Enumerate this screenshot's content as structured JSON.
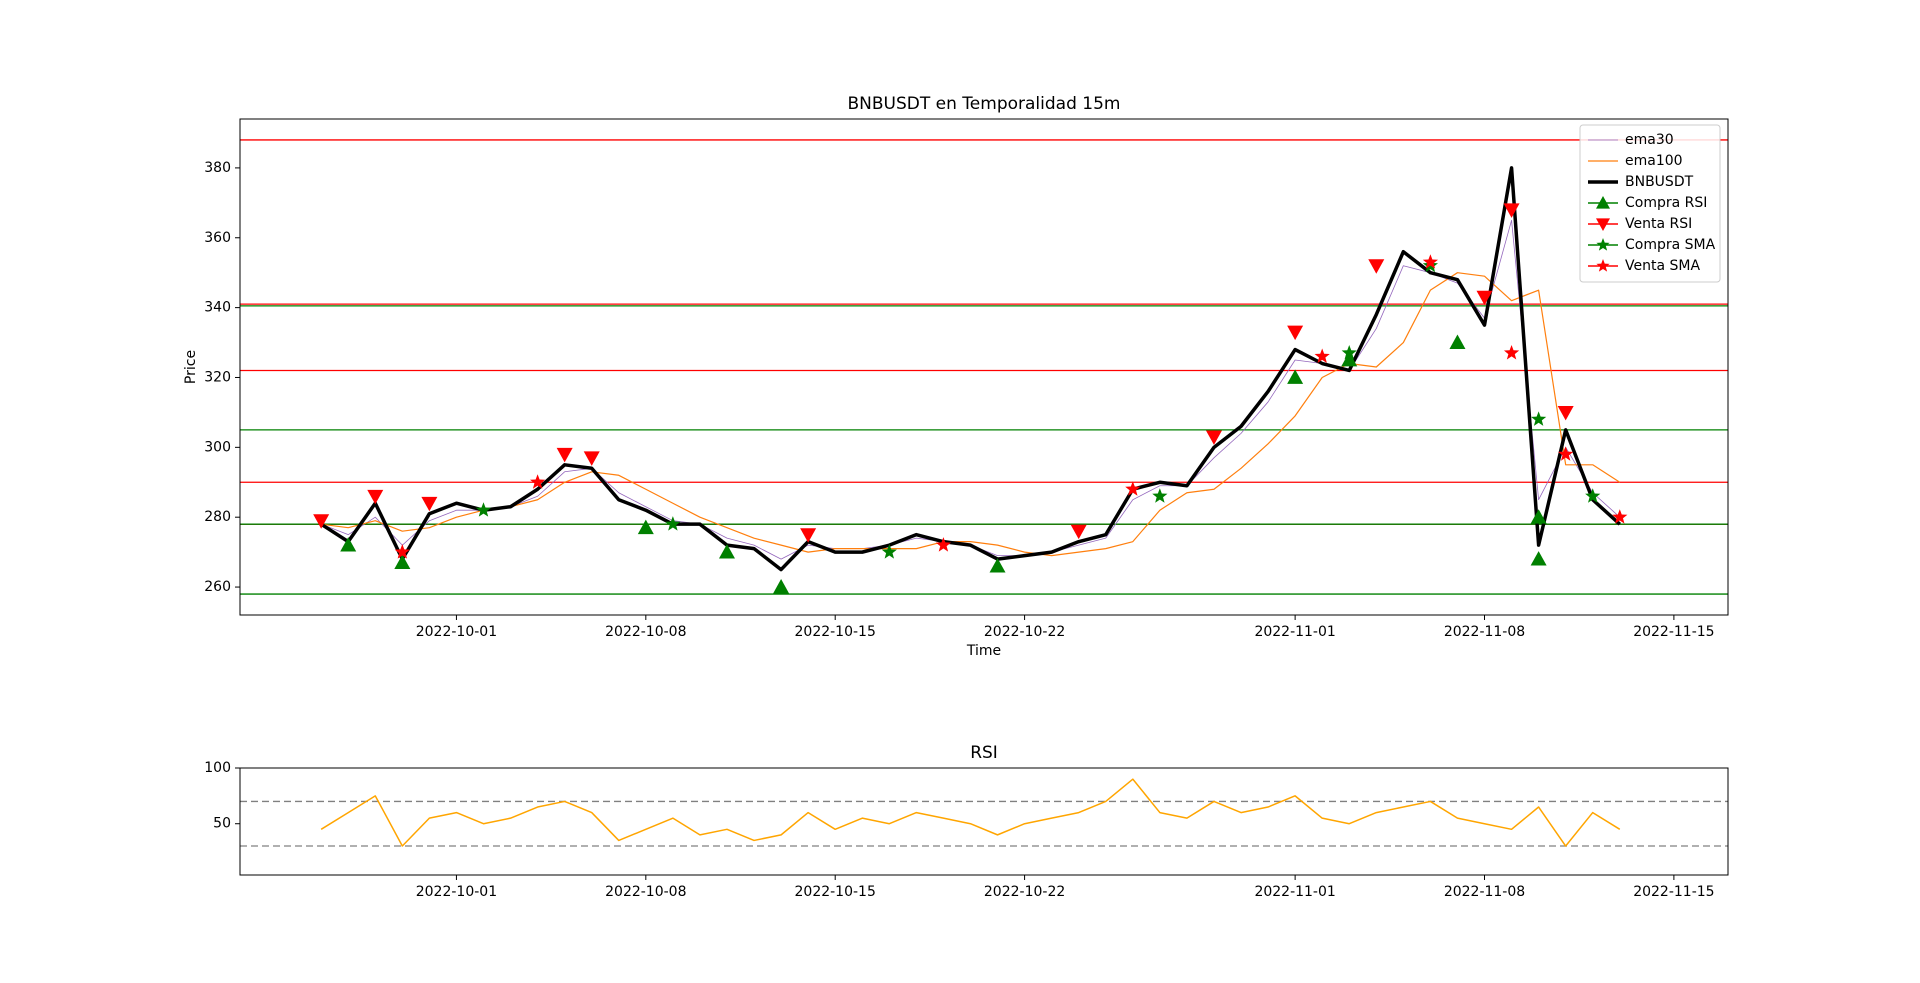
{
  "chart_data": [
    {
      "type": "line",
      "title": "BNBUSDT en Temporalidad 15m",
      "xlabel": "Time",
      "ylabel": "Price",
      "x": [
        "2022-09-26",
        "2022-09-27",
        "2022-09-28",
        "2022-09-29",
        "2022-09-30",
        "2022-10-01",
        "2022-10-02",
        "2022-10-03",
        "2022-10-04",
        "2022-10-05",
        "2022-10-06",
        "2022-10-07",
        "2022-10-08",
        "2022-10-09",
        "2022-10-10",
        "2022-10-11",
        "2022-10-12",
        "2022-10-13",
        "2022-10-14",
        "2022-10-15",
        "2022-10-16",
        "2022-10-17",
        "2022-10-18",
        "2022-10-19",
        "2022-10-20",
        "2022-10-21",
        "2022-10-22",
        "2022-10-23",
        "2022-10-24",
        "2022-10-25",
        "2022-10-26",
        "2022-10-27",
        "2022-10-28",
        "2022-10-29",
        "2022-10-30",
        "2022-10-31",
        "2022-11-01",
        "2022-11-02",
        "2022-11-03",
        "2022-11-04",
        "2022-11-05",
        "2022-11-06",
        "2022-11-07",
        "2022-11-08",
        "2022-11-09",
        "2022-11-10",
        "2022-11-11",
        "2022-11-12",
        "2022-11-13"
      ],
      "xlim": [
        "2022-09-23",
        "2022-11-17"
      ],
      "xticks": [
        "2022-10-01",
        "2022-10-08",
        "2022-10-15",
        "2022-10-22",
        "2022-11-01",
        "2022-11-08",
        "2022-11-15"
      ],
      "ylim": [
        252,
        394
      ],
      "yticks": [
        260,
        280,
        300,
        320,
        340,
        360,
        380
      ],
      "legend": "upper right",
      "series": [
        {
          "name": "ema30",
          "color": "#9467bd",
          "linewidth": 0.8,
          "values": [
            278,
            275,
            280,
            272,
            279,
            282,
            282,
            283,
            286,
            293,
            294,
            287,
            283,
            279,
            278,
            274,
            272,
            268,
            272,
            271,
            271,
            272,
            274,
            273,
            272,
            269,
            269,
            270,
            272,
            274,
            285,
            289,
            289,
            297,
            304,
            313,
            325,
            324,
            322,
            334,
            352,
            350,
            347,
            337,
            365,
            285,
            300,
            287,
            280
          ]
        },
        {
          "name": "ema100",
          "color": "#ff7f0e",
          "linewidth": 1.2,
          "values": [
            278,
            277,
            279,
            276,
            277,
            280,
            282,
            283,
            285,
            290,
            293,
            292,
            288,
            284,
            280,
            277,
            274,
            272,
            270,
            271,
            271,
            271,
            271,
            273,
            273,
            272,
            270,
            269,
            270,
            271,
            273,
            282,
            287,
            288,
            294,
            301,
            309,
            320,
            324,
            323,
            330,
            345,
            350,
            349,
            342,
            345,
            295,
            295,
            290
          ]
        },
        {
          "name": "BNBUSDT",
          "color": "#000000",
          "linewidth": 3.5,
          "values": [
            278,
            273,
            284,
            268,
            281,
            284,
            282,
            283,
            288,
            295,
            294,
            285,
            282,
            278,
            278,
            272,
            271,
            265,
            273,
            270,
            270,
            272,
            275,
            273,
            272,
            268,
            269,
            270,
            273,
            275,
            288,
            290,
            289,
            300,
            306,
            316,
            328,
            324,
            322,
            338,
            356,
            350,
            348,
            335,
            380,
            272,
            305,
            285,
            278
          ]
        }
      ],
      "signals": [
        {
          "name": "Compra RSI",
          "color": "#008000",
          "marker": "triangle-up",
          "x": [
            "2022-09-27",
            "2022-09-29",
            "2022-10-08",
            "2022-10-11",
            "2022-10-13",
            "2022-10-21",
            "2022-11-01",
            "2022-11-03",
            "2022-11-07",
            "2022-11-10",
            "2022-11-10"
          ],
          "values": [
            272,
            267,
            277,
            270,
            260,
            266,
            320,
            325,
            330,
            268,
            280
          ]
        },
        {
          "name": "Venta RSI",
          "color": "#ff0000",
          "marker": "triangle-down",
          "x": [
            "2022-09-26",
            "2022-09-28",
            "2022-09-30",
            "2022-10-05",
            "2022-10-06",
            "2022-10-14",
            "2022-10-24",
            "2022-10-29",
            "2022-11-01",
            "2022-11-04",
            "2022-11-08",
            "2022-11-09",
            "2022-11-11"
          ],
          "values": [
            279,
            286,
            284,
            298,
            297,
            275,
            276,
            303,
            333,
            352,
            343,
            368,
            310
          ]
        },
        {
          "name": "Compra SMA",
          "color": "#008000",
          "marker": "star",
          "x": [
            "2022-10-02",
            "2022-10-09",
            "2022-10-17",
            "2022-10-27",
            "2022-11-03",
            "2022-11-06",
            "2022-11-10",
            "2022-11-12"
          ],
          "values": [
            282,
            278,
            270,
            286,
            327,
            352,
            308,
            286
          ]
        },
        {
          "name": "Venta SMA",
          "color": "#ff0000",
          "marker": "star",
          "x": [
            "2022-09-29",
            "2022-10-04",
            "2022-10-19",
            "2022-10-26",
            "2022-11-02",
            "2022-11-06",
            "2022-11-09",
            "2022-11-11",
            "2022-11-13"
          ],
          "values": [
            270,
            290,
            272,
            288,
            326,
            353,
            327,
            298,
            280
          ]
        }
      ],
      "levels": [
        {
          "color": "#ff0000",
          "style": "solid",
          "values": [
            388,
            341,
            322,
            290,
            278
          ]
        },
        {
          "color": "#008000",
          "style": "solid",
          "values": [
            340.5,
            305,
            278,
            258
          ]
        }
      ]
    },
    {
      "type": "line",
      "title": "RSI",
      "x": [
        "2022-09-26",
        "2022-09-27",
        "2022-09-28",
        "2022-09-29",
        "2022-09-30",
        "2022-10-01",
        "2022-10-02",
        "2022-10-03",
        "2022-10-04",
        "2022-10-05",
        "2022-10-06",
        "2022-10-07",
        "2022-10-08",
        "2022-10-09",
        "2022-10-10",
        "2022-10-11",
        "2022-10-12",
        "2022-10-13",
        "2022-10-14",
        "2022-10-15",
        "2022-10-16",
        "2022-10-17",
        "2022-10-18",
        "2022-10-19",
        "2022-10-20",
        "2022-10-21",
        "2022-10-22",
        "2022-10-23",
        "2022-10-24",
        "2022-10-25",
        "2022-10-26",
        "2022-10-27",
        "2022-10-28",
        "2022-10-29",
        "2022-10-30",
        "2022-10-31",
        "2022-11-01",
        "2022-11-02",
        "2022-11-03",
        "2022-11-04",
        "2022-11-05",
        "2022-11-06",
        "2022-11-07",
        "2022-11-08",
        "2022-11-09",
        "2022-11-10",
        "2022-11-11",
        "2022-11-12",
        "2022-11-13"
      ],
      "xlim": [
        "2022-09-23",
        "2022-11-17"
      ],
      "xticks": [
        "2022-10-01",
        "2022-10-08",
        "2022-10-15",
        "2022-10-22",
        "2022-11-01",
        "2022-11-08",
        "2022-11-15"
      ],
      "ylim": [
        4,
        100
      ],
      "yticks": [
        50,
        100
      ],
      "series": [
        {
          "color": "#ffa500",
          "linewidth": 1.5,
          "values": [
            45,
            60,
            75,
            30,
            55,
            60,
            50,
            55,
            65,
            70,
            60,
            35,
            45,
            55,
            40,
            45,
            35,
            40,
            60,
            45,
            55,
            50,
            60,
            55,
            50,
            40,
            50,
            55,
            60,
            70,
            90,
            60,
            55,
            70,
            60,
            65,
            75,
            55,
            50,
            60,
            65,
            70,
            55,
            50,
            45,
            65,
            30,
            60,
            45
          ]
        }
      ],
      "levels": [
        {
          "color": "#808080",
          "style": "dashed",
          "values": [
            70,
            30
          ]
        }
      ]
    }
  ]
}
